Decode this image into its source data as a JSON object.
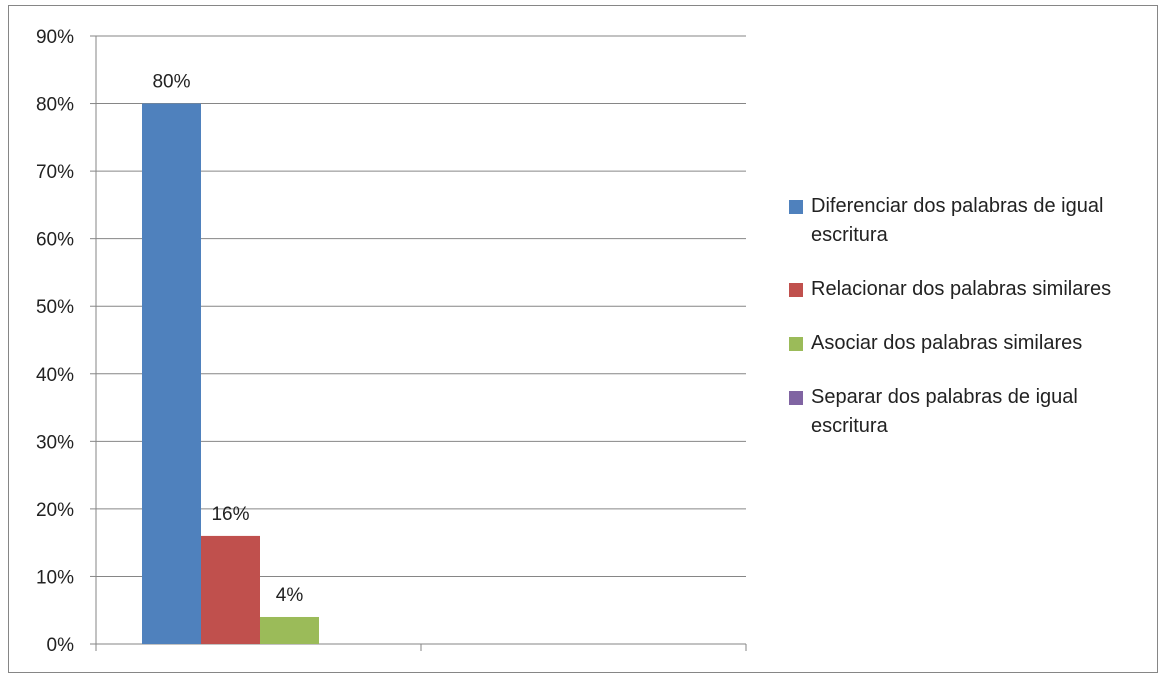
{
  "chart_data": {
    "type": "bar",
    "yticks": [
      "0%",
      "10%",
      "20%",
      "30%",
      "40%",
      "50%",
      "60%",
      "70%",
      "80%",
      "90%"
    ],
    "ylim": [
      0,
      90
    ],
    "grid": true,
    "legend_position": "right",
    "series": [
      {
        "name": "Diferenciar dos palabras de igual escritura",
        "value": 80,
        "label": "80%",
        "color": "#4F81BD"
      },
      {
        "name": "Relacionar dos  palabras similares",
        "value": 16,
        "label": "16%",
        "color": "#C0504D"
      },
      {
        "name": "Asociar dos palabras similares",
        "value": 4,
        "label": "4%",
        "color": "#9BBB59"
      },
      {
        "name": "Separar dos palabras de igual escritura",
        "value": 0,
        "label": "",
        "color": "#8064A2"
      }
    ]
  }
}
